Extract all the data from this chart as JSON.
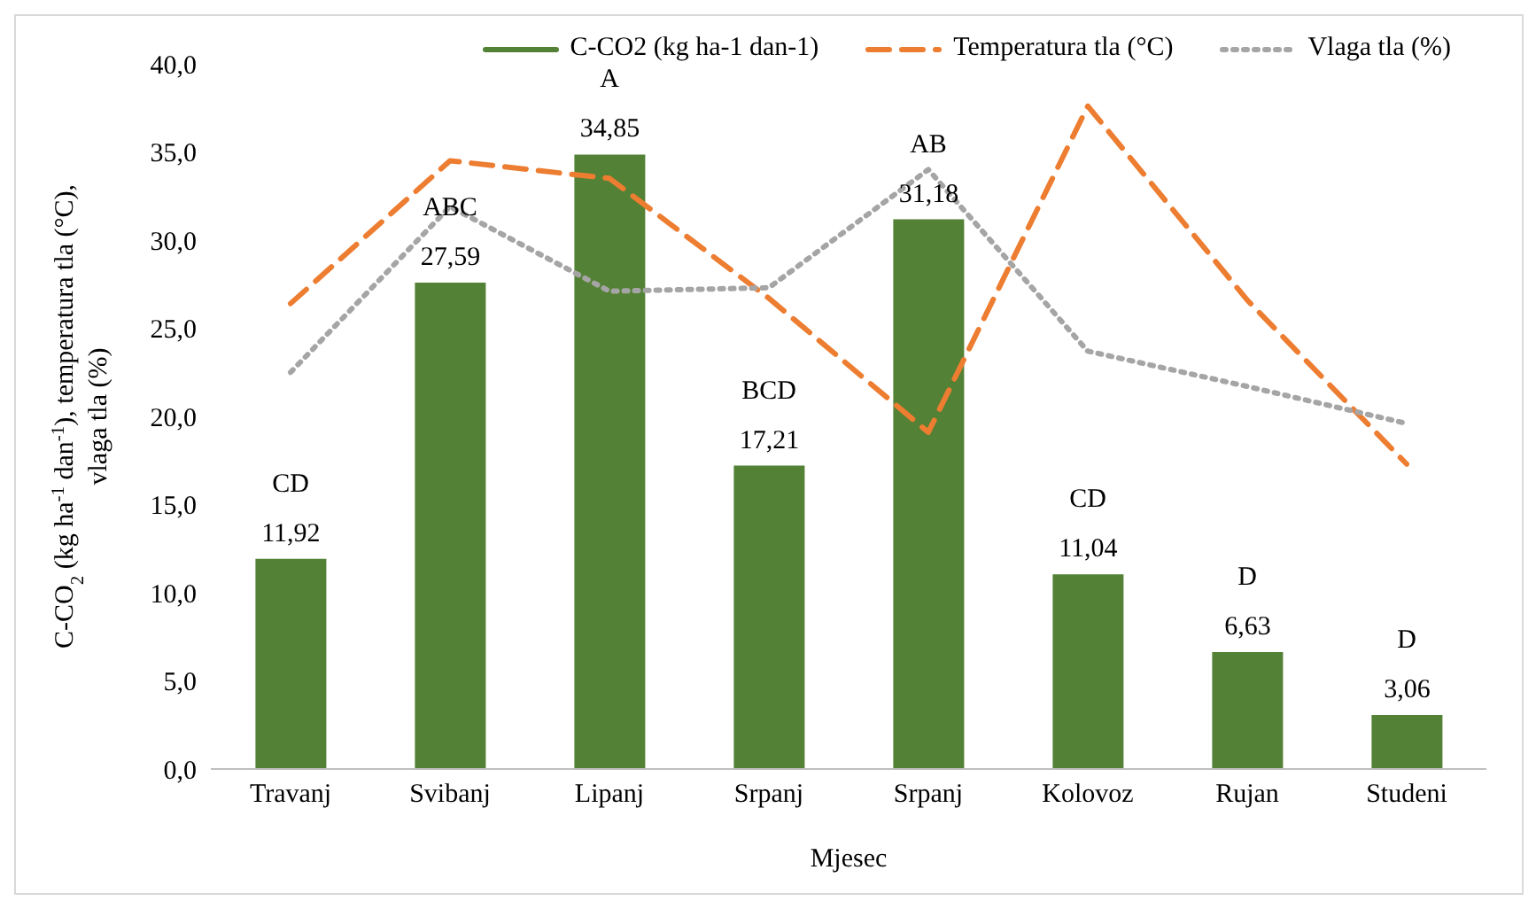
{
  "chart_data": {
    "type": "bar",
    "xlabel": "Mjesec",
    "ylabel": "C-CO$_{2}$ (kg ha$^{-1}$ dan$^{-1}$), temperatura tla (°C), vlaga tla (%)",
    "categories": [
      "Travanj",
      "Svibanj",
      "Lipanj",
      "Srpanj",
      "Srpanj",
      "Kolovoz",
      "Rujan",
      "Studeni"
    ],
    "series": [
      {
        "name": "C-CO2 (kg ha-1 dan-1)",
        "color": "#538135",
        "values": [
          11.92,
          27.59,
          34.85,
          17.21,
          31.18,
          11.04,
          6.63,
          3.06
        ],
        "value_labels": [
          "11,92",
          "27,59",
          "34,85",
          "17,21",
          "31,18",
          "11,04",
          "6,63",
          "3,06"
        ]
      },
      {
        "name": "Temperatura tla (°C)",
        "type": "line",
        "color": "#ed7d31",
        "line_style": "dashed",
        "values": [
          26.4,
          34.5,
          33.5,
          26.7,
          19.1,
          37.6,
          26.6,
          17.3
        ]
      },
      {
        "name": "Vlaga tla (%)",
        "type": "line",
        "color": "#a5a5a5",
        "line_style": "dotted",
        "values": [
          22.5,
          31.9,
          27.1,
          27.3,
          34.0,
          23.7,
          21.7,
          19.6
        ]
      }
    ],
    "ylim": [
      0,
      40
    ],
    "yticks": [
      {
        "value": 0,
        "label": "0,0"
      },
      {
        "value": 5,
        "label": "5,0"
      },
      {
        "value": 10,
        "label": "10,0"
      },
      {
        "value": 15,
        "label": "15,0"
      },
      {
        "value": 20,
        "label": "20,0"
      },
      {
        "value": 25,
        "label": "25,0"
      },
      {
        "value": 30,
        "label": "30,0"
      },
      {
        "value": 35,
        "label": "35,0"
      },
      {
        "value": 40,
        "label": "40,0"
      }
    ],
    "annotations": [
      "CD",
      "ABC",
      "A",
      "BCD",
      "AB",
      "CD",
      "D",
      "D"
    ],
    "grid": false,
    "legend": "top",
    "marker": "none"
  }
}
